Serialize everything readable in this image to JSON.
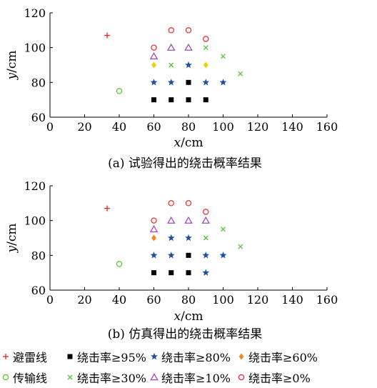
{
  "chart_data": [
    {
      "type": "scatter",
      "caption": "(a)  试验得出的绕击概率结果",
      "xlabel_var": "x",
      "xlabel_unit": "/cm",
      "ylabel_var": "y",
      "ylabel_unit": "/cm",
      "xlim": [
        0,
        160
      ],
      "ylim": [
        60,
        120
      ],
      "xticks": [
        "0",
        "20",
        "40",
        "60",
        "80",
        "100",
        "120",
        "140",
        "160"
      ],
      "yticks": [
        "60",
        "80",
        "100",
        "120"
      ],
      "grid": false,
      "series": [
        {
          "name": "避雷线",
          "marker": "plus",
          "color": "#e8262b",
          "points": [
            [
              33,
              107
            ]
          ]
        },
        {
          "name": "绕击率≥95%",
          "marker": "square",
          "color": "#000000",
          "points": [
            [
              60,
              70
            ],
            [
              70,
              70
            ],
            [
              80,
              70
            ],
            [
              90,
              70
            ],
            [
              80,
              80
            ]
          ]
        },
        {
          "name": "绕击率≥80%",
          "marker": "star",
          "color": "#1f4ea3",
          "points": [
            [
              60,
              80
            ],
            [
              70,
              80
            ],
            [
              90,
              80
            ],
            [
              100,
              80
            ],
            [
              80,
              90
            ]
          ]
        },
        {
          "name": "绕击率≥60%",
          "marker": "diamond",
          "color": "#e5d400",
          "points": [
            [
              60,
              90
            ],
            [
              90,
              90
            ]
          ]
        },
        {
          "name": "传输线",
          "marker": "circle",
          "color": "#5cbf3a",
          "points": [
            [
              40,
              75
            ]
          ]
        },
        {
          "name": "绕击率≥30%",
          "marker": "x",
          "color": "#5cbf3a",
          "points": [
            [
              70,
              90
            ],
            [
              90,
              100
            ],
            [
              100,
              95
            ],
            [
              110,
              85
            ]
          ]
        },
        {
          "name": "绕击率≥10%",
          "marker": "triangle",
          "color": "#a24bb3",
          "points": [
            [
              60,
              95
            ],
            [
              70,
              100
            ],
            [
              80,
              100
            ]
          ]
        },
        {
          "name": "绕击率≥0%",
          "marker": "circle",
          "color": "#e8262b",
          "points": [
            [
              60,
              100
            ],
            [
              70,
              110
            ],
            [
              80,
              110
            ],
            [
              90,
              105
            ]
          ]
        }
      ]
    },
    {
      "type": "scatter",
      "caption": "(b)  仿真得出的绕击概率结果",
      "xlabel_var": "x",
      "xlabel_unit": "/cm",
      "ylabel_var": "y",
      "ylabel_unit": "/cm",
      "xlim": [
        0,
        160
      ],
      "ylim": [
        60,
        120
      ],
      "xticks": [
        "0",
        "20",
        "40",
        "60",
        "80",
        "100",
        "120",
        "140",
        "160"
      ],
      "yticks": [
        "60",
        "80",
        "100",
        "120"
      ],
      "grid": false,
      "series": [
        {
          "name": "避雷线",
          "marker": "plus",
          "color": "#e8262b",
          "points": [
            [
              33,
              107
            ]
          ]
        },
        {
          "name": "绕击率≥95%",
          "marker": "square",
          "color": "#000000",
          "points": [
            [
              60,
              70
            ],
            [
              70,
              70
            ],
            [
              80,
              70
            ],
            [
              80,
              80
            ]
          ]
        },
        {
          "name": "绕击率≥80%",
          "marker": "star",
          "color": "#1f4ea3",
          "points": [
            [
              60,
              80
            ],
            [
              70,
              80
            ],
            [
              90,
              80
            ],
            [
              100,
              80
            ],
            [
              70,
              90
            ],
            [
              80,
              90
            ],
            [
              90,
              70
            ]
          ]
        },
        {
          "name": "绕击率≥60%",
          "marker": "diamond",
          "color": "#f28a1c",
          "points": [
            [
              60,
              90
            ]
          ]
        },
        {
          "name": "传输线",
          "marker": "circle",
          "color": "#5cbf3a",
          "points": [
            [
              40,
              75
            ]
          ]
        },
        {
          "name": "绕击率≥30%",
          "marker": "x",
          "color": "#5cbf3a",
          "points": [
            [
              90,
              90
            ],
            [
              100,
              95
            ],
            [
              110,
              85
            ]
          ]
        },
        {
          "name": "绕击率≥10%",
          "marker": "triangle",
          "color": "#a24bb3",
          "points": [
            [
              60,
              95
            ],
            [
              70,
              100
            ],
            [
              80,
              100
            ],
            [
              90,
              100
            ]
          ]
        },
        {
          "name": "绕击率≥0%",
          "marker": "circle",
          "color": "#e8262b",
          "points": [
            [
              60,
              100
            ],
            [
              70,
              110
            ],
            [
              80,
              110
            ],
            [
              90,
              105
            ]
          ]
        }
      ]
    }
  ],
  "legend": {
    "rows": [
      [
        {
          "marker": "plus",
          "color": "#e8262b",
          "label": "避雷线"
        },
        {
          "marker": "square",
          "color": "#000000",
          "label": "绕击率≥95%"
        },
        {
          "marker": "star",
          "color": "#1f4ea3",
          "label": "绕击率≥80%"
        },
        {
          "marker": "diamond",
          "color": "#f28a1c",
          "label": "绕击率≥60%"
        }
      ],
      [
        {
          "marker": "circle",
          "color": "#5cbf3a",
          "label": "传输线"
        },
        {
          "marker": "x",
          "color": "#5cbf3a",
          "label": "绕击率≥30%"
        },
        {
          "marker": "triangle",
          "color": "#a24bb3",
          "label": "绕击率≥10%"
        },
        {
          "marker": "circle",
          "color": "#e8262b",
          "label": "绕击率≥0%"
        }
      ]
    ]
  }
}
